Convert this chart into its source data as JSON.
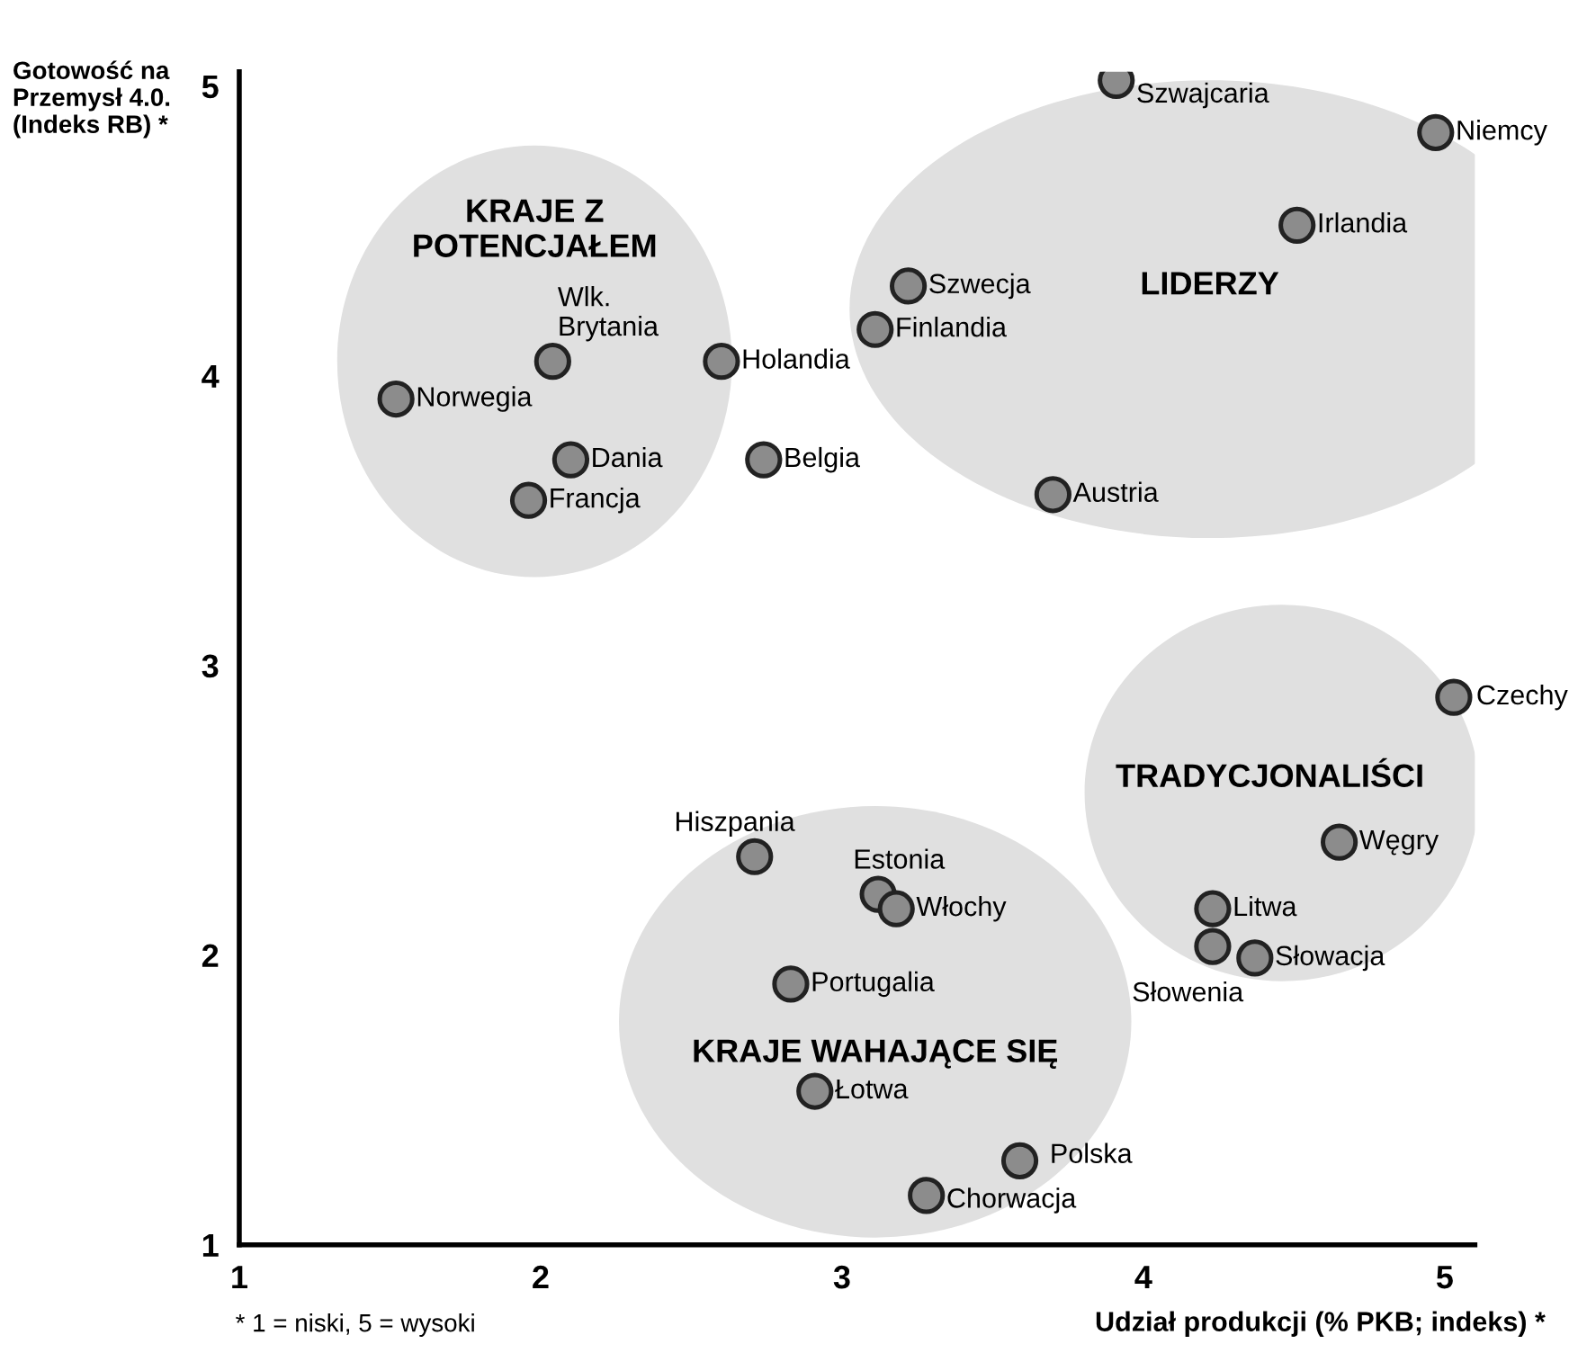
{
  "chart_data": {
    "type": "scatter",
    "xlabel": "Udział produkcji (% PKB; indeks) *",
    "ylabel": "Gotowość na\nPrzemysł 4.0.\n(Indeks RB) *",
    "x": [
      3.91,
      4.97,
      4.51,
      3.22,
      3.11,
      3.7,
      2.04,
      2.6,
      1.52,
      2.1,
      2.74,
      1.96,
      5.03,
      4.65,
      4.23,
      4.23,
      4.37,
      2.71,
      3.12,
      3.18,
      2.83,
      2.91,
      3.59,
      3.28
    ],
    "series": [
      {
        "color": "#8c8c8c",
        "values": [
          5.02,
          4.84,
          4.52,
          4.31,
          4.16,
          3.59,
          4.05,
          4.05,
          3.92,
          3.71,
          3.71,
          3.57,
          2.89,
          2.39,
          2.16,
          2.03,
          1.99,
          2.34,
          2.21,
          2.16,
          1.9,
          1.53,
          1.29,
          1.17
        ]
      }
    ],
    "xlim": [
      1,
      5.1
    ],
    "ylim": [
      1,
      5.05
    ],
    "xticks": [
      1,
      2,
      3,
      4,
      5
    ],
    "yticks": [
      1,
      2,
      3,
      4,
      5
    ],
    "grid": false,
    "marker": "circle",
    "annotations": [
      {
        "text": "Szwajcaria",
        "x": 3.91,
        "y": 5.02
      },
      {
        "text": "Niemcy",
        "x": 4.97,
        "y": 4.84
      },
      {
        "text": "Irlandia",
        "x": 4.51,
        "y": 4.52
      },
      {
        "text": "Szwecja",
        "x": 3.22,
        "y": 4.31
      },
      {
        "text": "Finlandia",
        "x": 3.11,
        "y": 4.16
      },
      {
        "text": "Austria",
        "x": 3.7,
        "y": 3.59
      },
      {
        "text": "Wlk.\nBrytania",
        "x": 2.04,
        "y": 4.05
      },
      {
        "text": "Holandia",
        "x": 2.6,
        "y": 4.05
      },
      {
        "text": "Norwegia",
        "x": 1.52,
        "y": 3.92
      },
      {
        "text": "Dania",
        "x": 2.1,
        "y": 3.71
      },
      {
        "text": "Belgia",
        "x": 2.74,
        "y": 3.71
      },
      {
        "text": "Francja",
        "x": 1.96,
        "y": 3.57
      },
      {
        "text": "Czechy",
        "x": 5.03,
        "y": 2.89
      },
      {
        "text": "Węgry",
        "x": 4.65,
        "y": 2.39
      },
      {
        "text": "Litwa",
        "x": 4.23,
        "y": 2.16
      },
      {
        "text": "Słowenia",
        "x": 4.23,
        "y": 2.03
      },
      {
        "text": "Słowacja",
        "x": 4.37,
        "y": 1.99
      },
      {
        "text": "Hiszpania",
        "x": 2.71,
        "y": 2.34
      },
      {
        "text": "Estonia",
        "x": 3.12,
        "y": 2.21
      },
      {
        "text": "Włochy",
        "x": 3.18,
        "y": 2.16
      },
      {
        "text": "Portugalia",
        "x": 2.83,
        "y": 1.9
      },
      {
        "text": "Łotwa",
        "x": 2.91,
        "y": 1.53
      },
      {
        "text": "Polska",
        "x": 3.59,
        "y": 1.29
      },
      {
        "text": "Chorwacja",
        "x": 3.28,
        "y": 1.17
      },
      "KRAJE Z\nPOTENCJAŁEM",
      "LIDERZY",
      "TRADYCJONALIŚCI",
      "KRAJE WAHAJĄCE SIĘ",
      "* 1 = niski, 5 = wysoki"
    ]
  }
}
